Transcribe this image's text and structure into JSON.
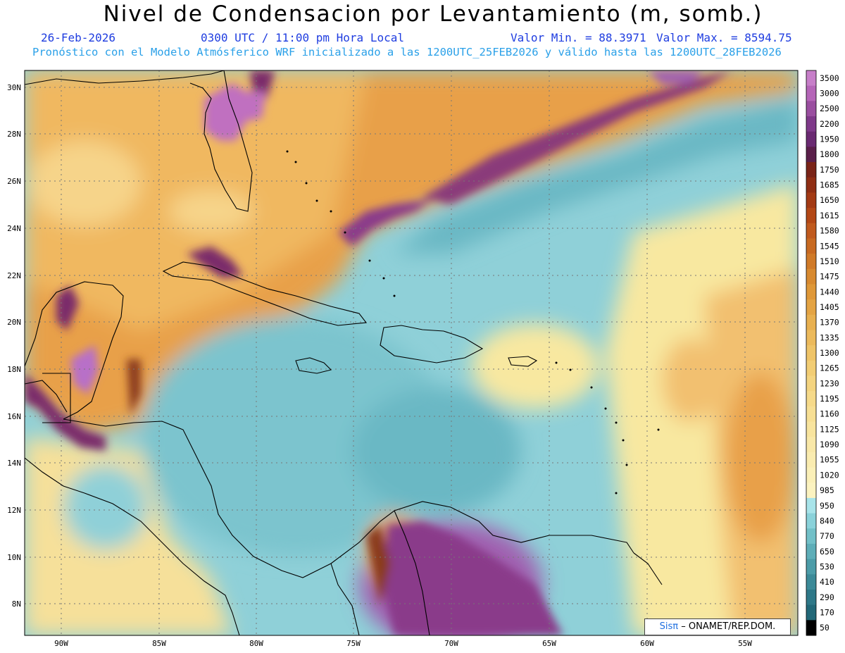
{
  "title": "Nivel de Condensacion por Levantamiento (m, somb.)",
  "header": {
    "date": "26-Feb-2026",
    "time": "0300 UTC / 11:00 pm Hora Local",
    "min_label": "Valor Min. = 88.3971",
    "max_label": "Valor Max. = 8594.75",
    "model_info": "Pronóstico con el Modelo Atmósferico WRF inicializado a las 1200UTC_25FEB2026 y válido hasta las  1200UTC_28FEB2026"
  },
  "axes": {
    "lon_labels": [
      "90W",
      "85W",
      "80W",
      "75W",
      "70W",
      "65W",
      "60W",
      "55W"
    ],
    "lat_labels": [
      "30N",
      "28N",
      "26N",
      "24N",
      "22N",
      "20N",
      "18N",
      "16N",
      "14N",
      "12N",
      "10N",
      "8N"
    ]
  },
  "colorbar": {
    "levels": [
      "3500",
      "3000",
      "2500",
      "2200",
      "1950",
      "1800",
      "1750",
      "1685",
      "1650",
      "1615",
      "1580",
      "1545",
      "1510",
      "1475",
      "1440",
      "1405",
      "1370",
      "1335",
      "1300",
      "1265",
      "1230",
      "1195",
      "1160",
      "1125",
      "1090",
      "1055",
      "1020",
      "985",
      "950",
      "840",
      "770",
      "650",
      "530",
      "410",
      "290",
      "170",
      "50"
    ],
    "colors": [
      "#c77fc9",
      "#b566b8",
      "#9a4fa0",
      "#7f3a8a",
      "#6a2a72",
      "#5a1f4a",
      "#7a2418",
      "#8f2e14",
      "#a33a14",
      "#b34816",
      "#c05a1e",
      "#c86a22",
      "#d07a28",
      "#d88a30",
      "#df9838",
      "#e4a444",
      "#e8b050",
      "#ecba5c",
      "#efc468",
      "#f2cd74",
      "#f4d480",
      "#f6da8a",
      "#f7df94",
      "#f8e49e",
      "#f9e8a8",
      "#faecb0",
      "#fbf0b8",
      "#fcf3c0",
      "#a8e4ea",
      "#8ad2da",
      "#72c0c8",
      "#5eaeb8",
      "#4c9ca8",
      "#3c8a98",
      "#2e7888",
      "#226878"
    ],
    "palette": {
      "purple": "#a060b0",
      "orange": "#e8a048",
      "lightorange": "#f2c070",
      "yellow": "#f8e8a0",
      "cyan": "#8fd0d8",
      "teal": "#6ab8c4",
      "darkteal": "#4a9aa8",
      "brown": "#8a3a1c"
    }
  },
  "credit": {
    "sis": "Sisπ",
    "rest": "– ONAMET/REP.DOM."
  }
}
